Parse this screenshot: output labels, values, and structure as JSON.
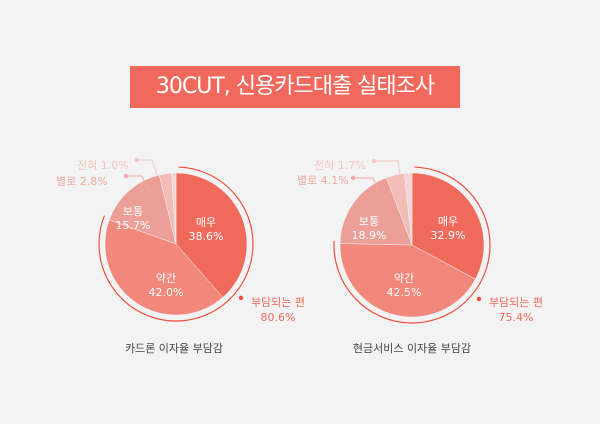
{
  "title": "30CUT, 신용카드대출 실태조사",
  "colors": {
    "매우": "#ef6a5b",
    "약간": "#f2877b",
    "보통": "#eb9f97",
    "별로": "#f2bdb6",
    "전혀": "#f5d5d1",
    "accent": "#ef4f40"
  },
  "chart_data": [
    {
      "type": "pie",
      "title": "카드론 이자율 부담감",
      "categories": [
        "매우",
        "약간",
        "보통",
        "별로",
        "전혀"
      ],
      "values": [
        38.6,
        42.0,
        15.7,
        2.8,
        1.0
      ],
      "labels": [
        "38.6%",
        "42.0%",
        "15.7%",
        "2.8%",
        "1.0%"
      ],
      "summary": {
        "label": "부담되는 편",
        "value": "80.6%"
      }
    },
    {
      "type": "pie",
      "title": "현금서비스 이자율 부담감",
      "categories": [
        "매우",
        "약간",
        "보통",
        "별로",
        "전혀"
      ],
      "values": [
        32.9,
        42.5,
        18.9,
        4.1,
        1.7
      ],
      "labels": [
        "32.9%",
        "42.5%",
        "18.9%",
        "4.1%",
        "1.7%"
      ],
      "summary": {
        "label": "부담되는 편",
        "value": "75.4%"
      }
    }
  ]
}
